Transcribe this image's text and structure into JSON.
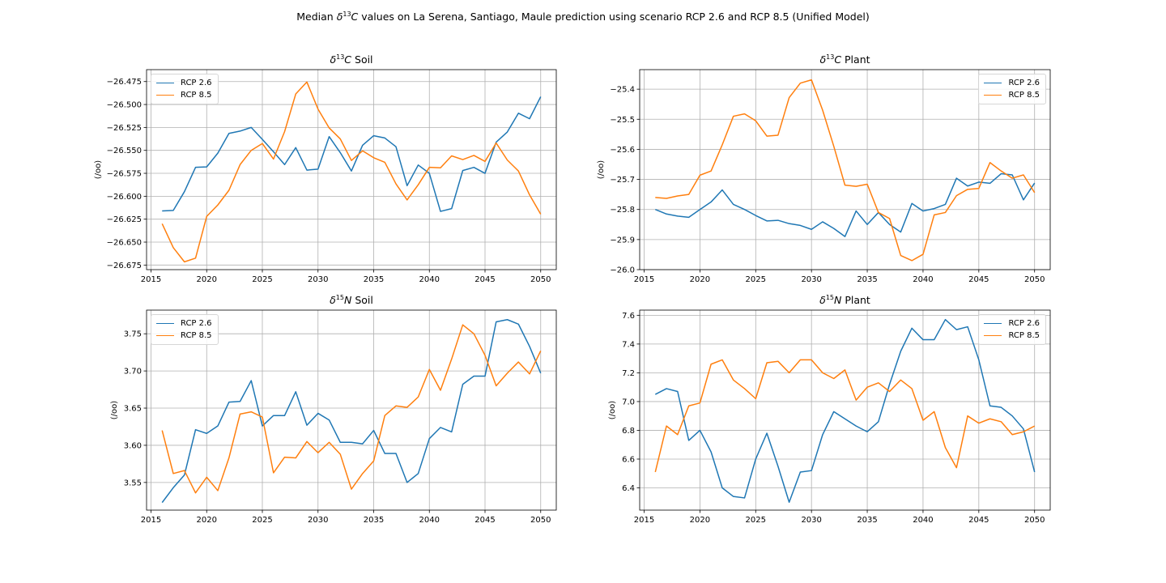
{
  "figure": {
    "title_prefix": "Median ",
    "title_delta": "δ",
    "title_sup": "13",
    "title_elem": "C",
    "title_rest": " values on La Serena, Santiago, Maule prediction using scenario RCP 2.6 and RCP 8.5 (Unified Model)"
  },
  "colors": {
    "rcp26": "#1f77b4",
    "rcp85": "#ff7f0e",
    "grid": "#b0b0b0"
  },
  "chart_data": [
    {
      "type": "line",
      "title_delta": "δ",
      "title_sup": "13",
      "title_elem": "C",
      "title_rest": " Soil",
      "ylabel": "(/oo)",
      "xlim": [
        2014.6,
        2051.4
      ],
      "ylim": [
        -26.68,
        -26.462
      ],
      "xticks": [
        2015,
        2020,
        2025,
        2030,
        2035,
        2040,
        2045,
        2050
      ],
      "xtick_labels": [
        "2015",
        "2020",
        "2025",
        "2030",
        "2035",
        "2040",
        "2045",
        "2050"
      ],
      "yticks": [
        -26.675,
        -26.65,
        -26.625,
        -26.6,
        -26.575,
        -26.55,
        -26.525,
        -26.5,
        -26.475
      ],
      "ytick_labels": [
        "−26.675",
        "−26.650",
        "−26.625",
        "−26.600",
        "−26.575",
        "−26.550",
        "−26.525",
        "−26.500",
        "−26.475"
      ],
      "grid": true,
      "legend": "upper left",
      "x": [
        2016,
        2017,
        2018,
        2019,
        2020,
        2021,
        2022,
        2023,
        2024,
        2025,
        2026,
        2027,
        2028,
        2029,
        2030,
        2031,
        2032,
        2033,
        2034,
        2035,
        2036,
        2037,
        2038,
        2039,
        2040,
        2041,
        2042,
        2043,
        2044,
        2045,
        2046,
        2047,
        2048,
        2049,
        2050
      ],
      "series": [
        {
          "name": "RCP 2.6",
          "values": [
            -26.616,
            -26.6155,
            -26.595,
            -26.5685,
            -26.568,
            -26.553,
            -26.5315,
            -26.529,
            -26.525,
            -26.538,
            -26.5515,
            -26.5655,
            -26.547,
            -26.5715,
            -26.5705,
            -26.535,
            -26.5525,
            -26.5725,
            -26.5445,
            -26.534,
            -26.5365,
            -26.546,
            -26.5885,
            -26.566,
            -26.575,
            -26.6165,
            -26.6135,
            -26.572,
            -26.5685,
            -26.575,
            -26.541,
            -26.53,
            -26.5095,
            -26.5155,
            -26.4915
          ]
        },
        {
          "name": "RCP 8.5",
          "values": [
            -26.63,
            -26.656,
            -26.6715,
            -26.6675,
            -26.622,
            -26.6095,
            -26.5935,
            -26.5655,
            -26.55,
            -26.5425,
            -26.5595,
            -26.5295,
            -26.4885,
            -26.4755,
            -26.505,
            -26.5255,
            -26.5375,
            -26.561,
            -26.5505,
            -26.558,
            -26.563,
            -26.5865,
            -26.604,
            -26.5875,
            -26.5685,
            -26.569,
            -26.556,
            -26.56,
            -26.5555,
            -26.562,
            -26.542,
            -26.5605,
            -26.5725,
            -26.5985,
            -26.6195
          ]
        }
      ]
    },
    {
      "type": "line",
      "title_delta": "δ",
      "title_sup": "13",
      "title_elem": "C",
      "title_rest": " Plant",
      "ylabel": "(/oo)",
      "xlim": [
        2014.6,
        2051.4
      ],
      "ylim": [
        -26.0,
        -25.335
      ],
      "xticks": [
        2015,
        2020,
        2025,
        2030,
        2035,
        2040,
        2045,
        2050
      ],
      "xtick_labels": [
        "2015",
        "2020",
        "2025",
        "2030",
        "2035",
        "2040",
        "2045",
        "2050"
      ],
      "yticks": [
        -26.0,
        -25.9,
        -25.8,
        -25.7,
        -25.6,
        -25.5,
        -25.4
      ],
      "ytick_labels": [
        "−26.0",
        "−25.9",
        "−25.8",
        "−25.7",
        "−25.6",
        "−25.5",
        "−25.4"
      ],
      "grid": true,
      "legend": "upper right",
      "x": [
        2016,
        2017,
        2018,
        2019,
        2020,
        2021,
        2022,
        2023,
        2024,
        2025,
        2026,
        2027,
        2028,
        2029,
        2030,
        2031,
        2032,
        2033,
        2034,
        2035,
        2036,
        2037,
        2038,
        2039,
        2040,
        2041,
        2042,
        2043,
        2044,
        2045,
        2046,
        2047,
        2048,
        2049,
        2050
      ],
      "series": [
        {
          "name": "RCP 2.6",
          "values": [
            -25.8,
            -25.815,
            -25.822,
            -25.826,
            -25.8,
            -25.775,
            -25.735,
            -25.783,
            -25.8,
            -25.82,
            -25.838,
            -25.836,
            -25.847,
            -25.853,
            -25.866,
            -25.841,
            -25.863,
            -25.89,
            -25.805,
            -25.85,
            -25.81,
            -25.85,
            -25.875,
            -25.78,
            -25.805,
            -25.797,
            -25.783,
            -25.696,
            -25.722,
            -25.709,
            -25.713,
            -25.681,
            -25.685,
            -25.768,
            -25.712
          ]
        },
        {
          "name": "RCP 8.5",
          "values": [
            -25.76,
            -25.763,
            -25.755,
            -25.75,
            -25.686,
            -25.672,
            -25.585,
            -25.49,
            -25.482,
            -25.505,
            -25.556,
            -25.553,
            -25.428,
            -25.38,
            -25.369,
            -25.47,
            -25.59,
            -25.719,
            -25.723,
            -25.716,
            -25.81,
            -25.83,
            -25.953,
            -25.97,
            -25.949,
            -25.818,
            -25.81,
            -25.754,
            -25.733,
            -25.73,
            -25.644,
            -25.672,
            -25.696,
            -25.685,
            -25.744
          ]
        }
      ]
    },
    {
      "type": "line",
      "title_delta": "δ",
      "title_sup": "15",
      "title_elem": "N",
      "title_rest": " Soil",
      "ylabel": "(/oo)",
      "xlim": [
        2014.6,
        2051.4
      ],
      "ylim": [
        3.5128,
        3.7818
      ],
      "xticks": [
        2015,
        2020,
        2025,
        2030,
        2035,
        2040,
        2045,
        2050
      ],
      "xtick_labels": [
        "2015",
        "2020",
        "2025",
        "2030",
        "2035",
        "2040",
        "2045",
        "2050"
      ],
      "yticks": [
        3.55,
        3.6,
        3.65,
        3.7,
        3.75
      ],
      "ytick_labels": [
        "3.55",
        "3.60",
        "3.65",
        "3.70",
        "3.75"
      ],
      "grid": true,
      "legend": "upper left",
      "x": [
        2016,
        2017,
        2018,
        2019,
        2020,
        2021,
        2022,
        2023,
        2024,
        2025,
        2026,
        2027,
        2028,
        2029,
        2030,
        2031,
        2032,
        2033,
        2034,
        2035,
        2036,
        2037,
        2038,
        2039,
        2040,
        2041,
        2042,
        2043,
        2044,
        2045,
        2046,
        2047,
        2048,
        2049,
        2050
      ],
      "series": [
        {
          "name": "RCP 2.6",
          "values": [
            3.523,
            3.543,
            3.56,
            3.621,
            3.616,
            3.626,
            3.658,
            3.659,
            3.687,
            3.626,
            3.64,
            3.64,
            3.672,
            3.627,
            3.643,
            3.634,
            3.604,
            3.604,
            3.602,
            3.62,
            3.589,
            3.589,
            3.55,
            3.562,
            3.609,
            3.624,
            3.618,
            3.682,
            3.693,
            3.693,
            3.766,
            3.769,
            3.763,
            3.733,
            3.697
          ]
        },
        {
          "name": "RCP 8.5",
          "values": [
            3.62,
            3.562,
            3.566,
            3.536,
            3.557,
            3.539,
            3.583,
            3.642,
            3.645,
            3.638,
            3.563,
            3.584,
            3.583,
            3.605,
            3.59,
            3.604,
            3.588,
            3.541,
            3.562,
            3.579,
            3.64,
            3.653,
            3.651,
            3.665,
            3.702,
            3.674,
            3.716,
            3.762,
            3.75,
            3.721,
            3.68,
            3.697,
            3.712,
            3.696,
            3.727
          ]
        }
      ]
    },
    {
      "type": "line",
      "title_delta": "δ",
      "title_sup": "15",
      "title_elem": "N",
      "title_rest": " Plant",
      "ylabel": "(/oo)",
      "xlim": [
        2014.6,
        2051.4
      ],
      "ylim": [
        6.2452,
        7.6358
      ],
      "xticks": [
        2015,
        2020,
        2025,
        2030,
        2035,
        2040,
        2045,
        2050
      ],
      "xtick_labels": [
        "2015",
        "2020",
        "2025",
        "2030",
        "2035",
        "2040",
        "2045",
        "2050"
      ],
      "yticks": [
        6.4,
        6.6,
        6.8,
        7.0,
        7.2,
        7.4,
        7.6
      ],
      "ytick_labels": [
        "6.4",
        "6.6",
        "6.8",
        "7.0",
        "7.2",
        "7.4",
        "7.6"
      ],
      "grid": true,
      "legend": "upper right",
      "x": [
        2016,
        2017,
        2018,
        2019,
        2020,
        2021,
        2022,
        2023,
        2024,
        2025,
        2026,
        2027,
        2028,
        2029,
        2030,
        2031,
        2032,
        2033,
        2034,
        2035,
        2036,
        2037,
        2038,
        2039,
        2040,
        2041,
        2042,
        2043,
        2044,
        2045,
        2046,
        2047,
        2048,
        2049,
        2050
      ],
      "series": [
        {
          "name": "RCP 2.6",
          "values": [
            7.05,
            7.09,
            7.07,
            6.73,
            6.8,
            6.65,
            6.4,
            6.34,
            6.33,
            6.6,
            6.78,
            6.55,
            6.3,
            6.51,
            6.52,
            6.77,
            6.93,
            6.88,
            6.83,
            6.79,
            6.86,
            7.12,
            7.35,
            7.51,
            7.43,
            7.43,
            7.57,
            7.5,
            7.52,
            7.29,
            6.97,
            6.96,
            6.9,
            6.81,
            6.51
          ]
        },
        {
          "name": "RCP 8.5",
          "values": [
            6.51,
            6.83,
            6.77,
            6.97,
            6.99,
            7.26,
            7.29,
            7.15,
            7.09,
            7.02,
            7.27,
            7.28,
            7.2,
            7.29,
            7.29,
            7.2,
            7.16,
            7.22,
            7.01,
            7.1,
            7.13,
            7.07,
            7.15,
            7.09,
            6.87,
            6.93,
            6.68,
            6.54,
            6.9,
            6.85,
            6.88,
            6.86,
            6.77,
            6.79,
            6.83
          ]
        }
      ]
    }
  ]
}
